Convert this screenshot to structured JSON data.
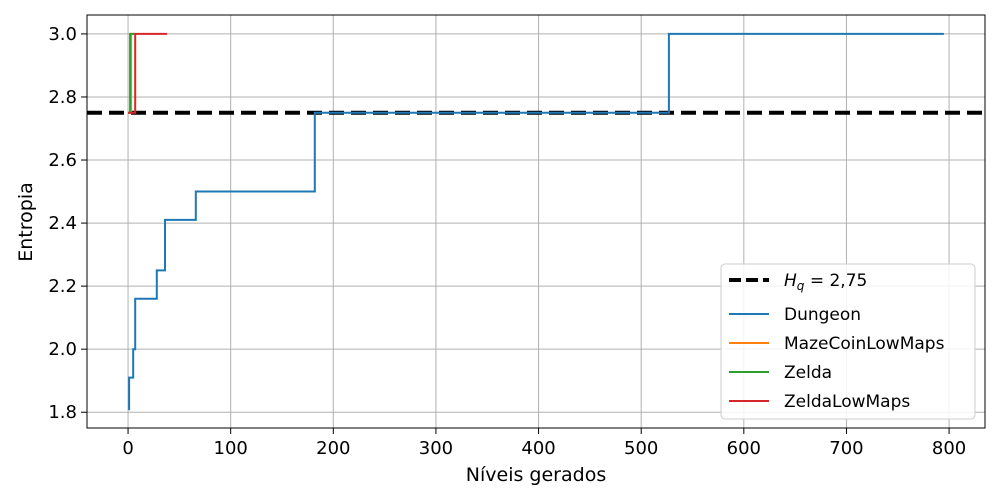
{
  "chart_data": {
    "type": "line",
    "title": "",
    "xlabel": "Níveis gerados",
    "ylabel": "Entropia",
    "xlim": [
      -40,
      835
    ],
    "ylim": [
      1.75,
      3.06
    ],
    "xticks": [
      0,
      100,
      200,
      300,
      400,
      500,
      600,
      700,
      800
    ],
    "xtick_labels": [
      "0",
      "100",
      "200",
      "300",
      "400",
      "500",
      "600",
      "700",
      "800"
    ],
    "yticks": [
      1.8,
      2.0,
      2.2,
      2.4,
      2.6,
      2.8,
      3.0
    ],
    "ytick_labels": [
      "1.8",
      "2.0",
      "2.2",
      "2.4",
      "2.6",
      "2.8",
      "3.0"
    ],
    "grid": true,
    "legend_position": "lower-right",
    "reference_line": {
      "name": "H_q = 2,75",
      "y": 2.75,
      "color": "#000000",
      "style": "dashed"
    },
    "series": [
      {
        "name": "Dungeon",
        "color": "#1f77b4",
        "points": [
          [
            0,
            1.81
          ],
          [
            1,
            1.81
          ],
          [
            1,
            1.91
          ],
          [
            5,
            1.91
          ],
          [
            5,
            2.0
          ],
          [
            7,
            2.0
          ],
          [
            7,
            2.16
          ],
          [
            28,
            2.16
          ],
          [
            28,
            2.25
          ],
          [
            36,
            2.25
          ],
          [
            36,
            2.41
          ],
          [
            66,
            2.41
          ],
          [
            66,
            2.5
          ],
          [
            182,
            2.5
          ],
          [
            182,
            2.75
          ],
          [
            527,
            2.75
          ],
          [
            527,
            3.0
          ],
          [
            795,
            3.0
          ]
        ]
      },
      {
        "name": "MazeCoinLowMaps",
        "color": "#ff7f0e",
        "points": [
          [
            0,
            2.75
          ],
          [
            3,
            2.75
          ],
          [
            3,
            3.0
          ],
          [
            5,
            3.0
          ]
        ]
      },
      {
        "name": "Zelda",
        "color": "#2ca02c",
        "points": [
          [
            0,
            2.75
          ],
          [
            2,
            2.75
          ],
          [
            2,
            3.0
          ],
          [
            7,
            3.0
          ]
        ]
      },
      {
        "name": "ZeldaLowMaps",
        "color": "#d62728",
        "points": [
          [
            0,
            2.75
          ],
          [
            7,
            2.75
          ],
          [
            7,
            3.0
          ],
          [
            38,
            3.0
          ]
        ]
      }
    ]
  }
}
